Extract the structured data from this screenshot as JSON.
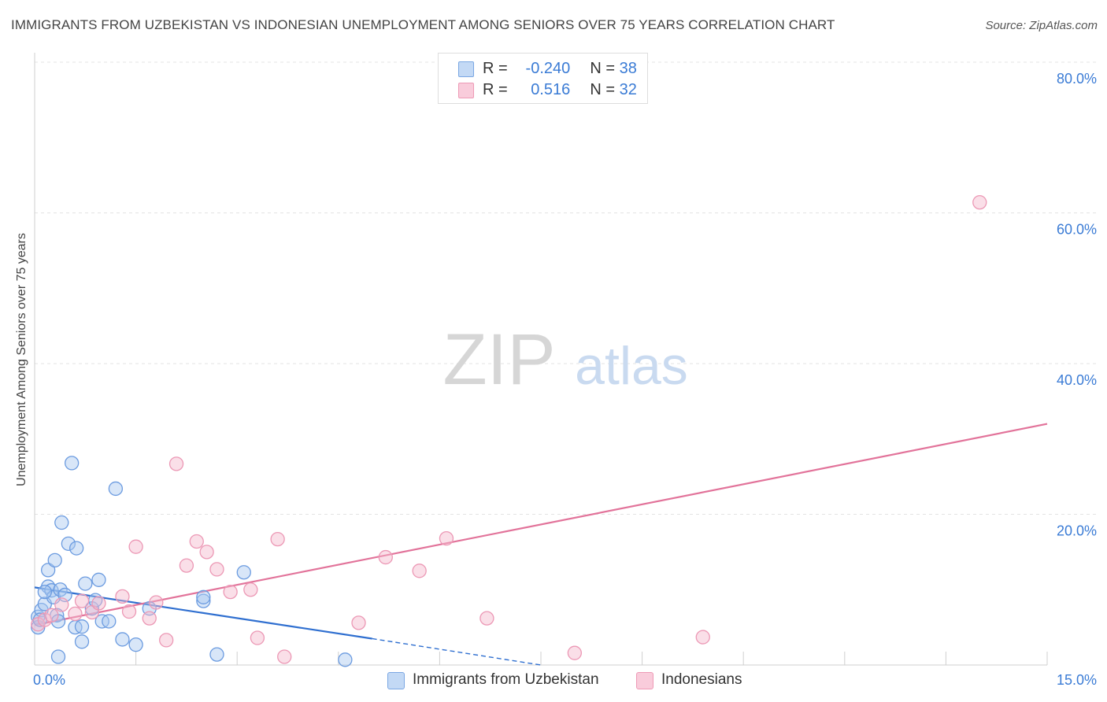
{
  "header": {
    "title": "IMMIGRANTS FROM UZBEKISTAN VS INDONESIAN UNEMPLOYMENT AMONG SENIORS OVER 75 YEARS CORRELATION CHART",
    "source": "Source: ZipAtlas.com"
  },
  "watermark": {
    "zip": "ZIP",
    "atlas": "atlas"
  },
  "legend": {
    "rows": [
      {
        "r_label": "R =",
        "r_value": "-0.240",
        "n_label": "N =",
        "n_value": "38",
        "color": "#a9c8f0"
      },
      {
        "r_label": "R =",
        "r_value": "0.516",
        "n_label": "N =",
        "n_value": "32",
        "color": "#f5b8cb"
      }
    ]
  },
  "bottom_legend": [
    {
      "label": "Immigrants from Uzbekistan",
      "color": "#a9c8f0"
    },
    {
      "label": "Indonesians",
      "color": "#f5b8cb"
    }
  ],
  "chart_data": {
    "type": "scatter",
    "ylabel": "Unemployment Among Seniors over 75 years",
    "xlim": [
      0,
      15
    ],
    "ylim": [
      0,
      80
    ],
    "x_tick_labels": [
      {
        "value": 0,
        "label": "0.0%"
      },
      {
        "value": 15,
        "label": "15.0%"
      }
    ],
    "y_tick_labels": [
      {
        "value": 20,
        "label": "20.0%"
      },
      {
        "value": 40,
        "label": "40.0%"
      },
      {
        "value": 60,
        "label": "60.0%"
      },
      {
        "value": 80,
        "label": "80.0%"
      }
    ],
    "series": [
      {
        "name": "Immigrants from Uzbekistan",
        "color": "#4a86d8",
        "fill": "#a9c8f0",
        "points": [
          [
            0.05,
            6.4
          ],
          [
            0.1,
            7.3
          ],
          [
            0.15,
            8.1
          ],
          [
            0.2,
            10.4
          ],
          [
            0.2,
            12.6
          ],
          [
            0.25,
            9.9
          ],
          [
            0.28,
            9.0
          ],
          [
            0.3,
            13.9
          ],
          [
            0.33,
            6.6
          ],
          [
            0.35,
            5.8
          ],
          [
            0.38,
            10.0
          ],
          [
            0.4,
            18.9
          ],
          [
            0.45,
            9.3
          ],
          [
            0.5,
            16.1
          ],
          [
            0.55,
            26.8
          ],
          [
            0.6,
            5.0
          ],
          [
            0.62,
            15.5
          ],
          [
            0.7,
            5.1
          ],
          [
            0.75,
            10.8
          ],
          [
            0.85,
            7.5
          ],
          [
            0.9,
            8.6
          ],
          [
            0.95,
            11.3
          ],
          [
            1.0,
            5.8
          ],
          [
            1.1,
            5.8
          ],
          [
            1.2,
            23.4
          ],
          [
            1.3,
            3.4
          ],
          [
            1.5,
            2.7
          ],
          [
            1.7,
            7.5
          ],
          [
            2.5,
            8.5
          ],
          [
            2.7,
            1.4
          ],
          [
            3.1,
            12.3
          ],
          [
            4.6,
            0.7
          ],
          [
            0.35,
            1.1
          ],
          [
            0.7,
            3.1
          ],
          [
            0.05,
            5.0
          ],
          [
            0.15,
            9.7
          ],
          [
            2.5,
            9.0
          ],
          [
            0.08,
            6.0
          ]
        ]
      },
      {
        "name": "Indonesians",
        "color": "#e8739b",
        "fill": "#f5b8cb",
        "points": [
          [
            0.05,
            5.4
          ],
          [
            0.15,
            6.0
          ],
          [
            0.25,
            6.6
          ],
          [
            0.4,
            8.0
          ],
          [
            0.7,
            8.5
          ],
          [
            0.85,
            7.0
          ],
          [
            0.95,
            8.2
          ],
          [
            1.3,
            9.1
          ],
          [
            1.4,
            7.1
          ],
          [
            1.5,
            15.7
          ],
          [
            1.8,
            8.3
          ],
          [
            1.95,
            3.3
          ],
          [
            2.1,
            26.7
          ],
          [
            2.25,
            13.2
          ],
          [
            2.4,
            16.4
          ],
          [
            2.55,
            15.0
          ],
          [
            2.7,
            12.7
          ],
          [
            2.9,
            9.7
          ],
          [
            3.2,
            10.0
          ],
          [
            3.3,
            3.6
          ],
          [
            3.6,
            16.7
          ],
          [
            3.7,
            1.1
          ],
          [
            4.8,
            5.6
          ],
          [
            5.2,
            14.3
          ],
          [
            5.7,
            12.5
          ],
          [
            6.1,
            16.8
          ],
          [
            6.7,
            6.2
          ],
          [
            8.0,
            1.6
          ],
          [
            9.9,
            3.7
          ],
          [
            14.0,
            61.4
          ],
          [
            0.6,
            6.8
          ],
          [
            1.7,
            6.2
          ]
        ]
      }
    ],
    "trend_lines": [
      {
        "series": "Immigrants from Uzbekistan",
        "x0": 0,
        "y0": 10.3,
        "x1": 5,
        "y1": 3.5,
        "dashed_to_x": 7.5,
        "dashed_to_y": 0.0
      },
      {
        "series": "Indonesians",
        "x0": 0,
        "y0": 5.3,
        "x1": 15,
        "y1": 32.0
      }
    ],
    "grid": true
  }
}
